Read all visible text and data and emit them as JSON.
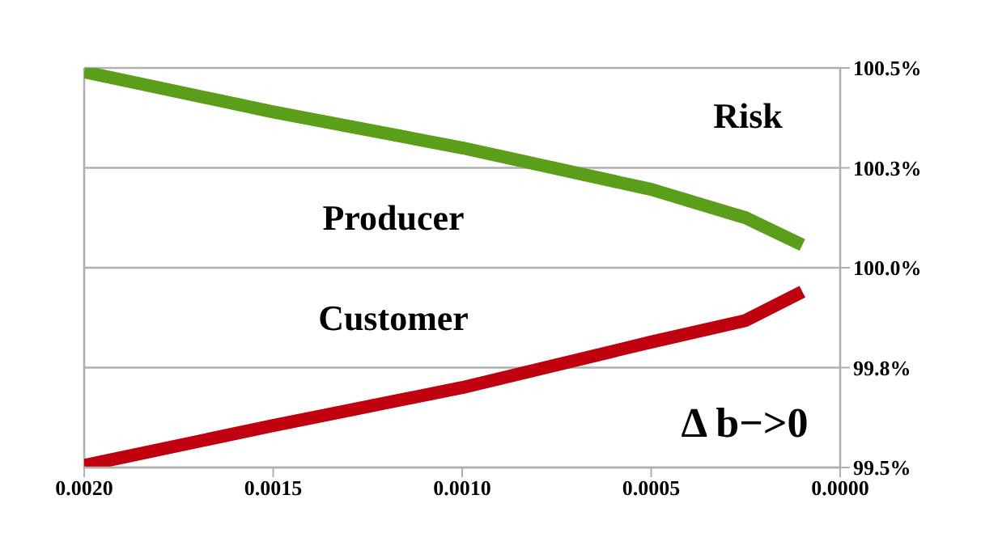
{
  "chart_data": {
    "type": "line",
    "x": [
      0.002,
      0.0015,
      0.001,
      0.0005,
      0.00025,
      0.0001
    ],
    "series": [
      {
        "color": "#5a9e1a",
        "values": [
          100.49,
          100.39,
          100.3,
          100.196,
          100.125,
          100.057
        ]
      },
      {
        "color": "#c0000f",
        "values": [
          99.505,
          99.605,
          99.7,
          99.814,
          99.868,
          99.94
        ]
      }
    ],
    "xlim": [
      0.002,
      0
    ],
    "xticks": [
      {
        "value": 0.002,
        "label": "0.0020"
      },
      {
        "value": 0.0015,
        "label": "0.0015"
      },
      {
        "value": 0.001,
        "label": "0.0010"
      },
      {
        "value": 0.0005,
        "label": "0.0005"
      },
      {
        "value": 0,
        "label": "0.0000"
      }
    ],
    "ylim": [
      99.5,
      100.5
    ],
    "yticks": [
      {
        "value": 99.5,
        "label": "99.5%"
      },
      {
        "value": 99.75,
        "label": "99.8%"
      },
      {
        "value": 100,
        "label": "100.0%"
      },
      {
        "value": 100.25,
        "label": "100.3%"
      },
      {
        "value": 100.5,
        "label": "100.5%"
      }
    ],
    "annotations": [
      "Risk",
      "Producer",
      "Customer",
      "Δ b−>0"
    ],
    "grid": "y",
    "marker": "none",
    "line_style": "solid",
    "legend": false
  }
}
